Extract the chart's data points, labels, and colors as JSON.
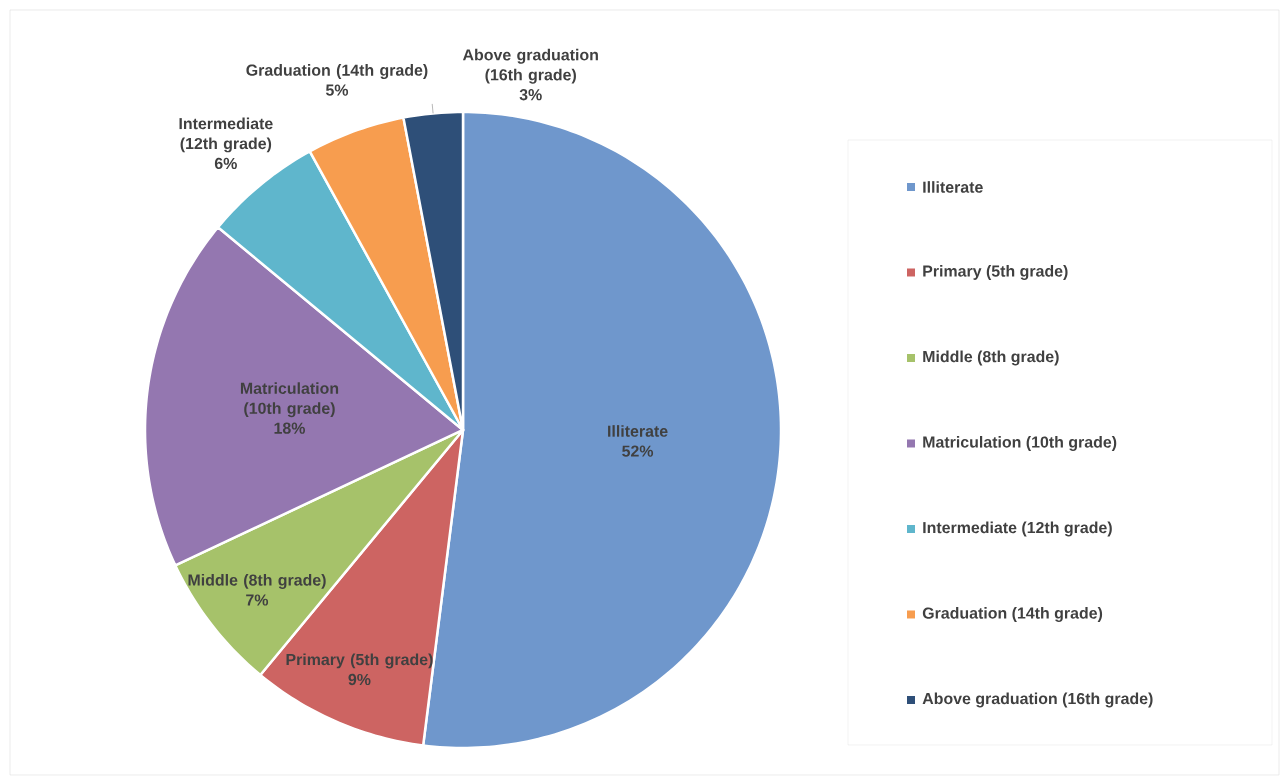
{
  "chart_data": {
    "type": "pie",
    "categories": [
      "Illiterate",
      "Primary (5th grade)",
      "Middle (8th grade)",
      "Matriculation (10th grade)",
      "Intermediate (12th grade)",
      "Graduation (14th grade)",
      "Above graduation (16th grade)"
    ],
    "values": [
      52,
      9,
      7,
      18,
      6,
      5,
      3
    ],
    "value_labels": [
      "52%",
      "9%",
      "7%",
      "18%",
      "6%",
      "5%",
      "3%"
    ],
    "colors": [
      "#6f97cc",
      "#cd6462",
      "#a6c26a",
      "#9477b0",
      "#5fb6cc",
      "#f79d4f",
      "#2e4f78"
    ],
    "legend": "right"
  }
}
